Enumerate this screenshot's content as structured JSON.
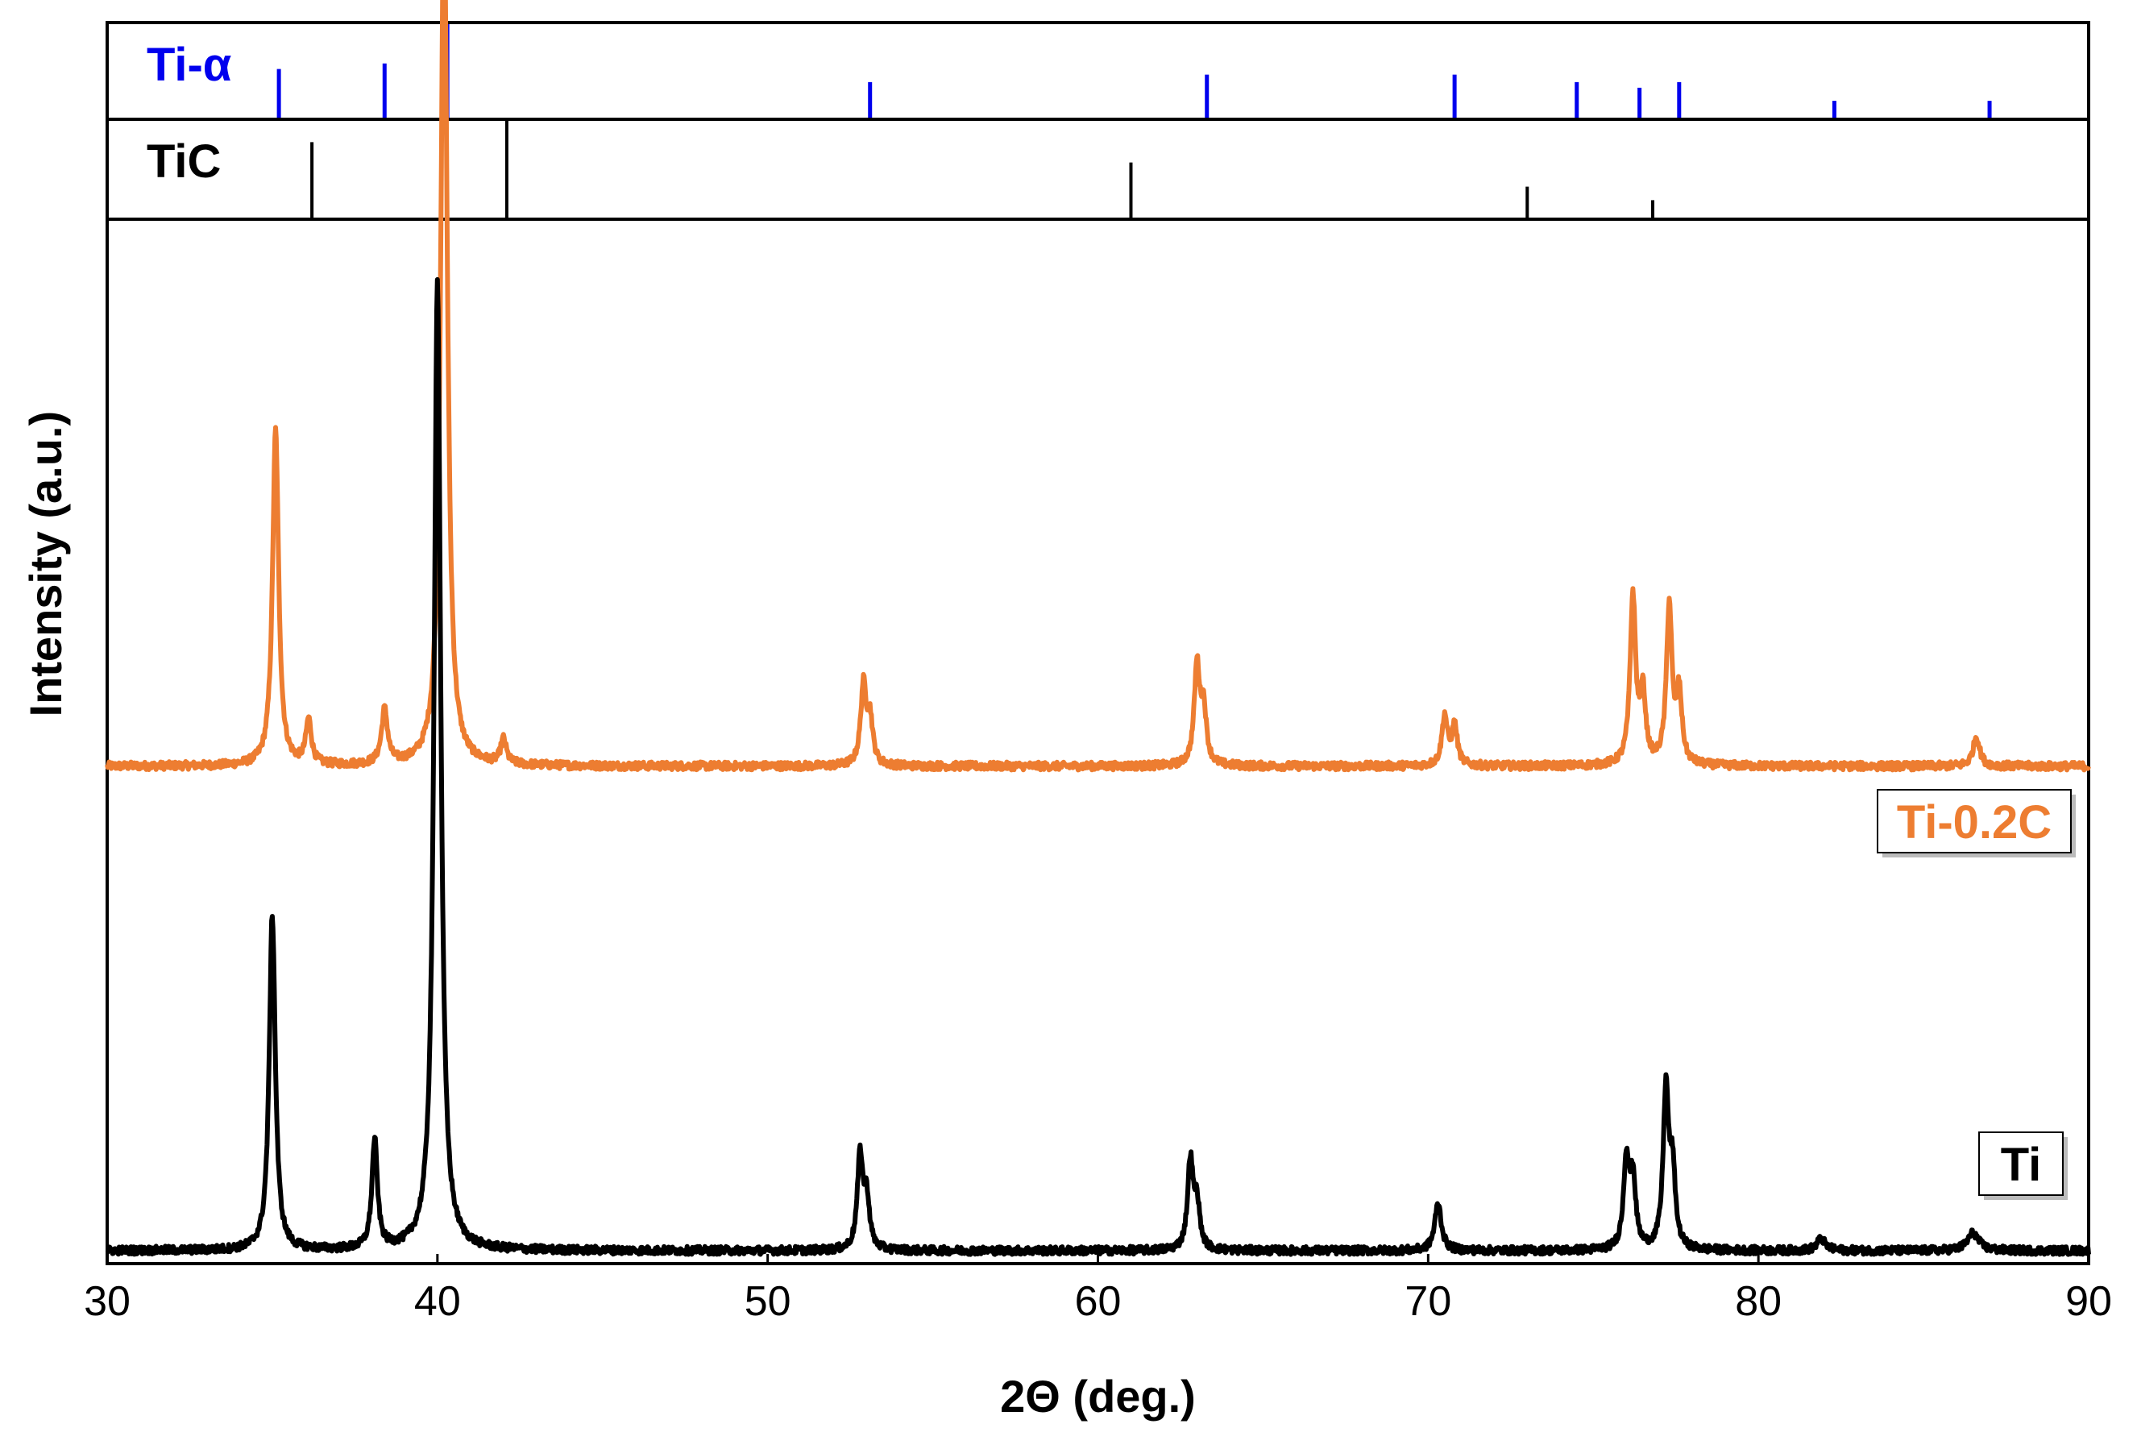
{
  "chart_data": {
    "type": "line",
    "title": "",
    "xlabel": "2Θ (deg.)",
    "ylabel": "Intensity (a.u.)",
    "xlim": [
      30,
      90
    ],
    "xticks": [
      30,
      40,
      50,
      60,
      70,
      80,
      90
    ],
    "grid": false,
    "reference_patterns": [
      {
        "name": "Ti-α",
        "color": "#0000ee",
        "peaks": [
          {
            "x": 35.2,
            "intensity": 0.52
          },
          {
            "x": 38.4,
            "intensity": 0.58
          },
          {
            "x": 40.3,
            "intensity": 1.0
          },
          {
            "x": 53.1,
            "intensity": 0.38
          },
          {
            "x": 63.3,
            "intensity": 0.46
          },
          {
            "x": 70.8,
            "intensity": 0.46
          },
          {
            "x": 74.5,
            "intensity": 0.38
          },
          {
            "x": 76.4,
            "intensity": 0.32
          },
          {
            "x": 77.6,
            "intensity": 0.38
          },
          {
            "x": 82.3,
            "intensity": 0.18
          },
          {
            "x": 87.0,
            "intensity": 0.18
          }
        ]
      },
      {
        "name": "TiC",
        "color": "#000000",
        "peaks": [
          {
            "x": 36.2,
            "intensity": 0.78
          },
          {
            "x": 42.1,
            "intensity": 1.0
          },
          {
            "x": 61.0,
            "intensity": 0.57
          },
          {
            "x": 73.0,
            "intensity": 0.32
          },
          {
            "x": 76.8,
            "intensity": 0.18
          }
        ]
      }
    ],
    "series": [
      {
        "name": "Ti-0.2C",
        "color": "#ed7d31",
        "baseline": 0.49,
        "peaks": [
          {
            "x": 35.1,
            "height": 0.34,
            "width": 0.11
          },
          {
            "x": 36.1,
            "height": 0.045,
            "width": 0.1
          },
          {
            "x": 38.4,
            "height": 0.055,
            "width": 0.11
          },
          {
            "x": 40.2,
            "height": 0.88,
            "width": 0.12
          },
          {
            "x": 42.0,
            "height": 0.025,
            "width": 0.1
          },
          {
            "x": 52.9,
            "height": 0.08,
            "width": 0.1
          },
          {
            "x": 53.1,
            "height": 0.045,
            "width": 0.1
          },
          {
            "x": 63.0,
            "height": 0.1,
            "width": 0.1
          },
          {
            "x": 63.2,
            "height": 0.055,
            "width": 0.1
          },
          {
            "x": 70.5,
            "height": 0.05,
            "width": 0.1
          },
          {
            "x": 70.8,
            "height": 0.04,
            "width": 0.1
          },
          {
            "x": 76.2,
            "height": 0.17,
            "width": 0.1
          },
          {
            "x": 76.5,
            "height": 0.07,
            "width": 0.1
          },
          {
            "x": 77.3,
            "height": 0.16,
            "width": 0.1
          },
          {
            "x": 77.6,
            "height": 0.07,
            "width": 0.1
          },
          {
            "x": 86.6,
            "height": 0.03,
            "width": 0.12
          }
        ]
      },
      {
        "name": "Ti",
        "color": "#000000",
        "baseline": 0.0,
        "peaks": [
          {
            "x": 35.0,
            "height": 0.34,
            "width": 0.11
          },
          {
            "x": 38.1,
            "height": 0.11,
            "width": 0.1
          },
          {
            "x": 40.0,
            "height": 0.98,
            "width": 0.12
          },
          {
            "x": 52.8,
            "height": 0.095,
            "width": 0.1
          },
          {
            "x": 53.0,
            "height": 0.05,
            "width": 0.1
          },
          {
            "x": 62.8,
            "height": 0.09,
            "width": 0.1
          },
          {
            "x": 63.0,
            "height": 0.045,
            "width": 0.1
          },
          {
            "x": 70.3,
            "height": 0.048,
            "width": 0.12
          },
          {
            "x": 76.0,
            "height": 0.09,
            "width": 0.1
          },
          {
            "x": 76.2,
            "height": 0.07,
            "width": 0.1
          },
          {
            "x": 77.2,
            "height": 0.16,
            "width": 0.1
          },
          {
            "x": 77.4,
            "height": 0.075,
            "width": 0.1
          },
          {
            "x": 81.9,
            "height": 0.012,
            "width": 0.15
          },
          {
            "x": 86.5,
            "height": 0.018,
            "width": 0.2
          }
        ]
      }
    ],
    "legend": [
      {
        "label": "Ti-0.2C",
        "color": "#ed7d31"
      },
      {
        "label": "Ti",
        "color": "#000000"
      }
    ]
  }
}
